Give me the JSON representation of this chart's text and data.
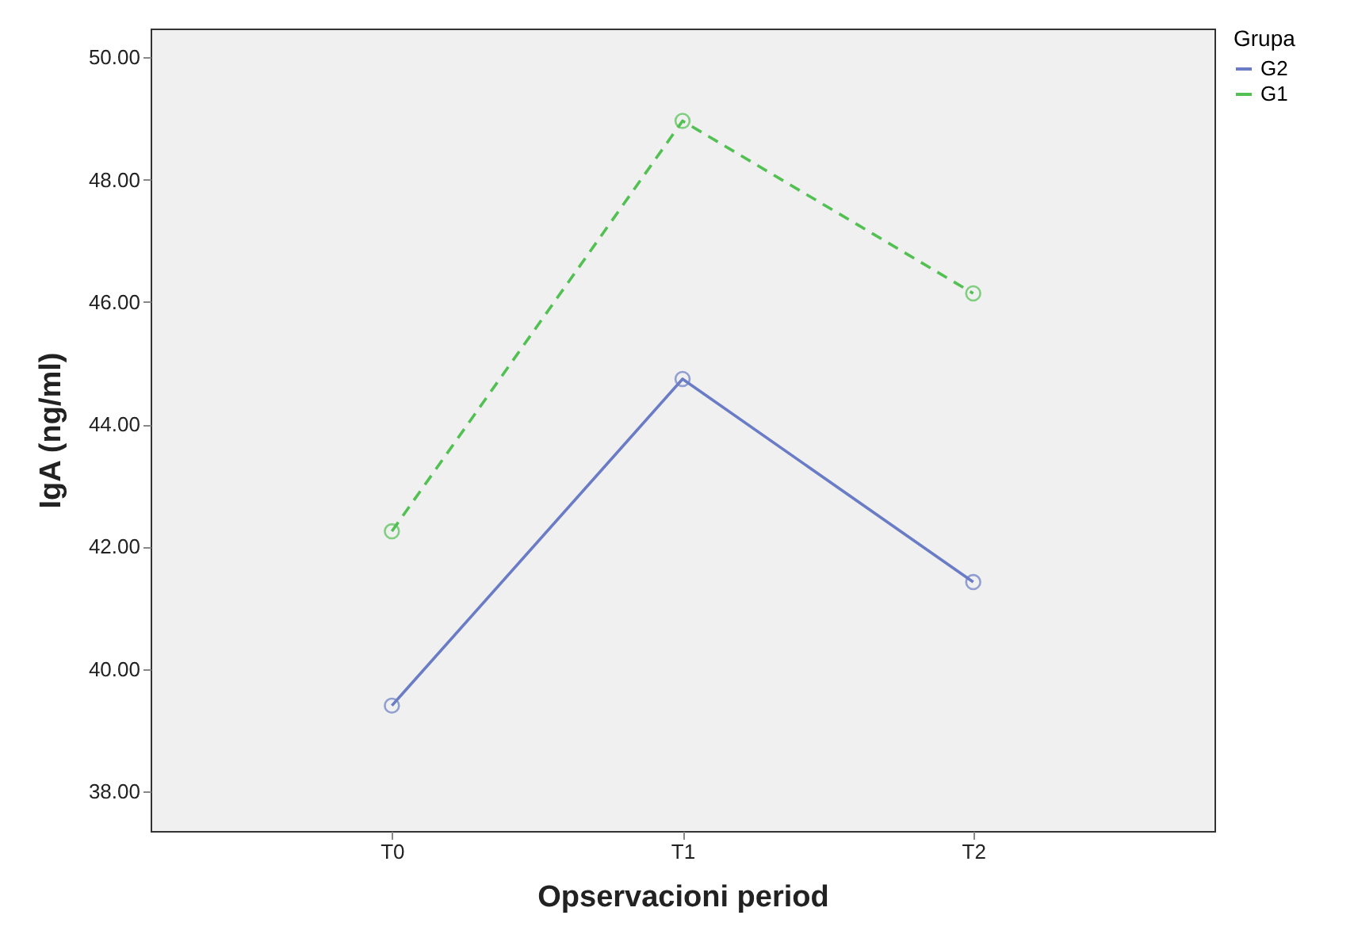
{
  "chart_data": {
    "type": "line",
    "xlabel": "Opservacioni period",
    "ylabel": "IgA (ng/ml)",
    "legend_title": "Grupa",
    "legend": "top right",
    "marker": "circle",
    "grid": false,
    "categories": [
      "T0",
      "T1",
      "T2"
    ],
    "ylim": [
      37.35,
      50.47
    ],
    "yticks": [
      {
        "value": 38,
        "label": "38.00"
      },
      {
        "value": 40,
        "label": "40.00"
      },
      {
        "value": 42,
        "label": "42.00"
      },
      {
        "value": 44,
        "label": "44.00"
      },
      {
        "value": 46,
        "label": "46.00"
      },
      {
        "value": 48,
        "label": "48.00"
      },
      {
        "value": 50,
        "label": "50.00"
      }
    ],
    "series": [
      {
        "name": "G2",
        "color": "#6a7cc6",
        "line_style": "solid",
        "values": [
          39.4,
          44.74,
          41.42
        ]
      },
      {
        "name": "G1",
        "color": "#52c052",
        "line_style": "dashed",
        "values": [
          42.25,
          48.96,
          46.14
        ]
      }
    ]
  }
}
